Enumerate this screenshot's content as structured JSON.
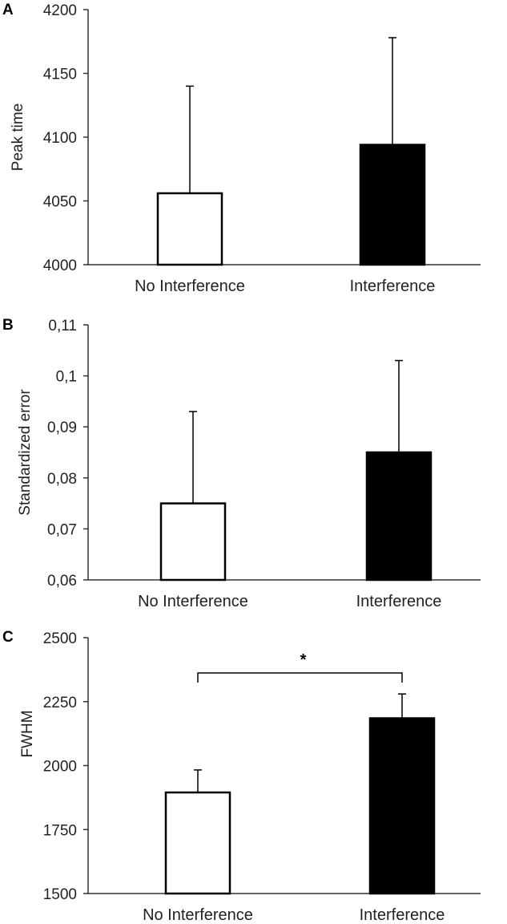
{
  "chart_data": [
    {
      "type": "bar",
      "panel": "A",
      "categories": [
        "No Interference",
        "Interference"
      ],
      "values": [
        4056,
        4094
      ],
      "errors": [
        84,
        84
      ],
      "bar_colors": [
        "#ffffff",
        "#000000"
      ],
      "ylabel": "Peak time",
      "ylim": [
        4000,
        4200
      ],
      "yticks": [
        4000,
        4050,
        4100,
        4150,
        4200
      ],
      "ytick_labels": [
        "4000",
        "4050",
        "4100",
        "4150",
        "4200"
      ],
      "significance": null
    },
    {
      "type": "bar",
      "panel": "B",
      "categories": [
        "No Interference",
        "Interference"
      ],
      "values": [
        0.075,
        0.085
      ],
      "errors": [
        0.018,
        0.018
      ],
      "bar_colors": [
        "#ffffff",
        "#000000"
      ],
      "ylabel": "Standardized error",
      "ylim": [
        0.06,
        0.11
      ],
      "yticks": [
        0.06,
        0.07,
        0.08,
        0.09,
        0.1,
        0.11
      ],
      "ytick_labels": [
        "0,06",
        "0,07",
        "0,08",
        "0,09",
        "0,1",
        "0,11"
      ],
      "significance": null
    },
    {
      "type": "bar",
      "panel": "C",
      "categories": [
        "No Interference",
        "Interference"
      ],
      "values": [
        1895,
        2185
      ],
      "errors": [
        88,
        95
      ],
      "bar_colors": [
        "#ffffff",
        "#000000"
      ],
      "ylabel": "FWHM",
      "ylim": [
        1500,
        2500
      ],
      "yticks": [
        1500,
        1750,
        2000,
        2250,
        2500
      ],
      "ytick_labels": [
        "1500",
        "1750",
        "2000",
        "2250",
        "2500"
      ],
      "significance": "*"
    }
  ]
}
